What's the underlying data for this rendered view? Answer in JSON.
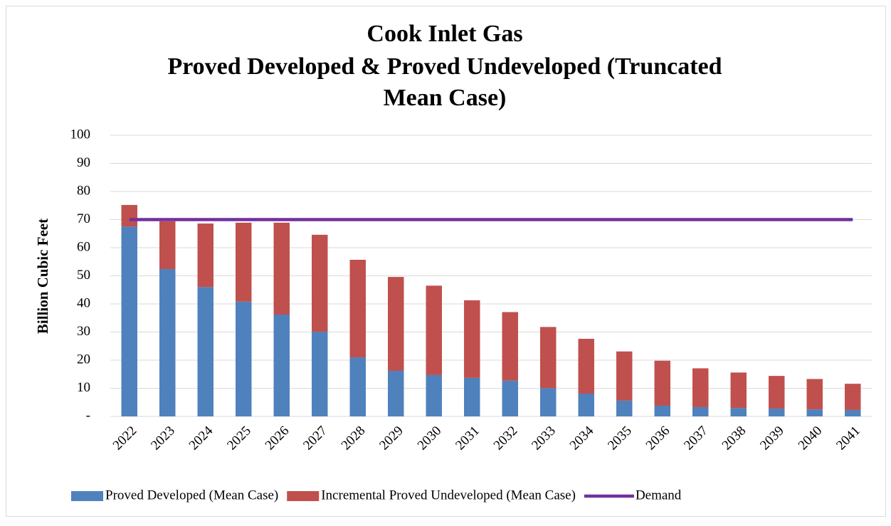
{
  "chart_data": {
    "type": "bar",
    "title": [
      "Cook Inlet Gas",
      "Proved Developed & Proved Undeveloped (Truncated",
      "Mean Case)"
    ],
    "y_label": "Billion Cubic Feet",
    "stacked": true,
    "categories": [
      "2022",
      "2023",
      "2024",
      "2025",
      "2026",
      "2027",
      "2028",
      "2029",
      "2030",
      "2031",
      "2032",
      "2033",
      "2034",
      "2035",
      "2036",
      "2037",
      "2038",
      "2039",
      "2040",
      "2041"
    ],
    "series": [
      {
        "name": "Proved Developed (Mean Case)",
        "color": "#4f81bd",
        "type": "bar",
        "values": [
          67.5,
          52.4,
          46,
          40.8,
          36.2,
          30.1,
          21,
          16.2,
          14.7,
          13.7,
          12.7,
          10.1,
          8.1,
          5.6,
          3.8,
          3.3,
          3,
          2.8,
          2.5,
          2.3
        ]
      },
      {
        "name": "Incremental Proved Undeveloped (Mean Case)",
        "color": "#c0504d",
        "type": "bar",
        "values": [
          7.7,
          17,
          22.6,
          28.1,
          32.7,
          34.5,
          34.7,
          33.4,
          31.8,
          27.6,
          24.4,
          21.7,
          19.5,
          17.5,
          16,
          13.8,
          12.6,
          11.6,
          10.8,
          9.3
        ]
      },
      {
        "name": "Demand",
        "color": "#7030a0",
        "type": "line",
        "values": [
          70,
          70,
          70,
          70,
          70,
          70,
          70,
          70,
          70,
          70,
          70,
          70,
          70,
          70,
          70,
          70,
          70,
          70,
          70,
          70
        ]
      }
    ],
    "ylim": [
      0,
      100
    ],
    "yticks": [
      {
        "value": 0,
        "label": "-"
      },
      10,
      20,
      30,
      40,
      50,
      60,
      70,
      80,
      90,
      100
    ],
    "grid": true,
    "legend": "bottom"
  }
}
